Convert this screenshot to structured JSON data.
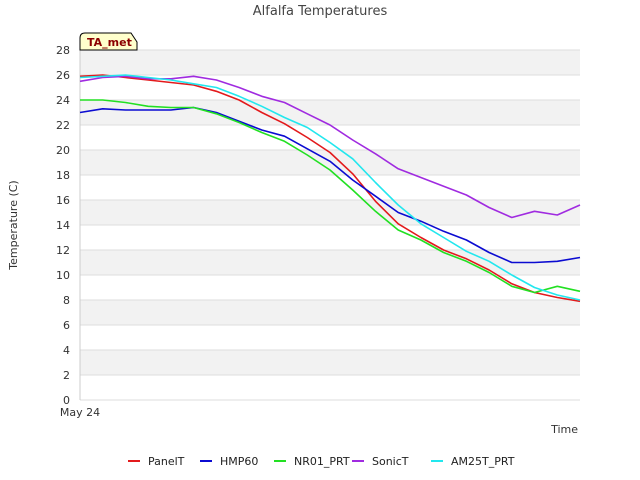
{
  "chart_data": {
    "type": "line",
    "title": "Alfalfa Temperatures",
    "xlabel": "Time",
    "ylabel": "Temperature (C)",
    "x_tick_label": "May 24",
    "badge": "TA_met",
    "ylim": [
      0,
      28
    ],
    "yticks": [
      0,
      2,
      4,
      6,
      8,
      10,
      12,
      14,
      16,
      18,
      20,
      22,
      24,
      26,
      28
    ],
    "grid": "horizontal bands",
    "legend_position": "bottom",
    "x": [
      0,
      1,
      2,
      3,
      4,
      5,
      6,
      7,
      8,
      9,
      10,
      11,
      12,
      13,
      14,
      15,
      16,
      17,
      18,
      19,
      20,
      21,
      22
    ],
    "series": [
      {
        "name": "PanelT",
        "color": "#e31a1c",
        "values": [
          25.9,
          26.0,
          25.8,
          25.6,
          25.4,
          25.2,
          24.7,
          24.0,
          23.0,
          22.1,
          21.0,
          19.8,
          18.1,
          15.9,
          14.1,
          13.0,
          12.0,
          11.3,
          10.4,
          9.3,
          8.6,
          8.2,
          7.9
        ]
      },
      {
        "name": "HMP60",
        "color": "#0b0bd1",
        "values": [
          23.0,
          23.3,
          23.2,
          23.2,
          23.2,
          23.4,
          23.0,
          22.3,
          21.6,
          21.1,
          20.1,
          19.1,
          17.6,
          16.3,
          15.0,
          14.3,
          13.5,
          12.8,
          11.8,
          11.0,
          11.0,
          11.1,
          11.4
        ]
      },
      {
        "name": "NR01_PRT",
        "color": "#22e022",
        "values": [
          24.0,
          24.0,
          23.8,
          23.5,
          23.4,
          23.4,
          22.9,
          22.2,
          21.4,
          20.7,
          19.6,
          18.4,
          16.8,
          15.1,
          13.6,
          12.8,
          11.8,
          11.1,
          10.2,
          9.1,
          8.6,
          9.1,
          8.7
        ]
      },
      {
        "name": "SonicT",
        "color": "#a02be0",
        "values": [
          25.5,
          25.8,
          25.9,
          25.7,
          25.7,
          25.9,
          25.6,
          25.0,
          24.3,
          23.8,
          22.9,
          22.0,
          20.8,
          19.7,
          18.5,
          17.8,
          17.1,
          16.4,
          15.4,
          14.6,
          15.1,
          14.8,
          15.6
        ]
      },
      {
        "name": "AM25T_PRT",
        "color": "#22e7ee",
        "values": [
          25.8,
          25.9,
          26.0,
          25.8,
          25.6,
          25.3,
          25.0,
          24.3,
          23.5,
          22.6,
          21.8,
          20.6,
          19.3,
          17.4,
          15.6,
          14.1,
          13.0,
          11.9,
          11.1,
          10.0,
          9.0,
          8.4,
          8.0
        ]
      }
    ]
  }
}
